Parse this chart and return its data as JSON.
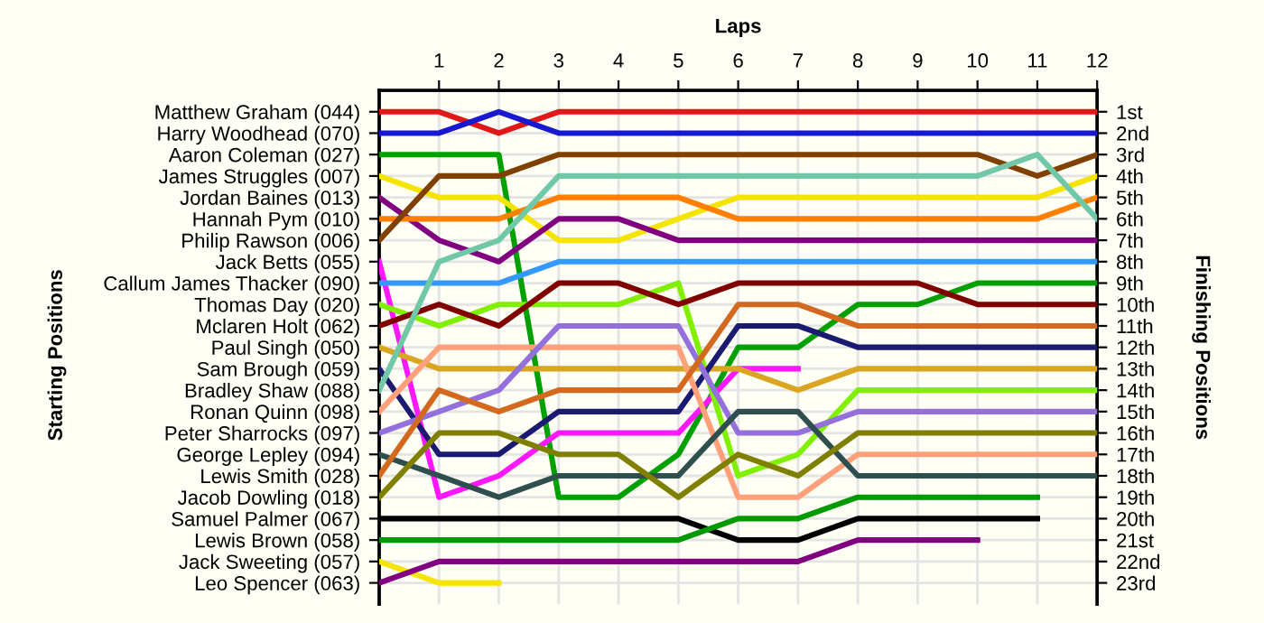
{
  "chart_data": {
    "type": "line",
    "xlabel": "Laps",
    "annotations": [
      "Starting Positions"
    ],
    "y2label": "Finishing Positions",
    "x": [
      0,
      1,
      2,
      3,
      4,
      5,
      6,
      7,
      8,
      9,
      10,
      11,
      12
    ],
    "xlim": [
      0,
      12
    ],
    "xticks": [
      1,
      2,
      3,
      4,
      5,
      6,
      7,
      8,
      9,
      10,
      11,
      12
    ],
    "y_categories": [
      "Matthew Graham (044)",
      "Harry Woodhead (070)",
      "Aaron Coleman (027)",
      "James Struggles (007)",
      "Jordan Baines (013)",
      "Hannah Pym (010)",
      "Philip Rawson (006)",
      "Jack Betts (055)",
      "Callum James Thacker (090)",
      "Thomas Day (020)",
      "Mclaren Holt (062)",
      "Paul Singh (050)",
      "Sam Brough (059)",
      "Bradley Shaw (088)",
      "Ronan Quinn (098)",
      "Peter Sharrocks (097)",
      "George Lepley (094)",
      "Lewis Smith (028)",
      "Jacob Dowling (018)",
      "Samuel Palmer (067)",
      "Lewis Brown (058)",
      "Jack Sweeting (057)",
      "Leo Spencer (063)"
    ],
    "y2lim": [
      24,
      0
    ],
    "y2ticks": [
      {
        "value": 1,
        "label": "1st"
      },
      {
        "value": 2,
        "label": "2nd"
      },
      {
        "value": 3,
        "label": "3rd"
      },
      {
        "value": 4,
        "label": "4th"
      },
      {
        "value": 5,
        "label": "5th"
      },
      {
        "value": 6,
        "label": "6th"
      },
      {
        "value": 7,
        "label": "7th"
      },
      {
        "value": 8,
        "label": "8th"
      },
      {
        "value": 9,
        "label": "9th"
      },
      {
        "value": 10,
        "label": "10th"
      },
      {
        "value": 11,
        "label": "11th"
      },
      {
        "value": 12,
        "label": "12th"
      },
      {
        "value": 13,
        "label": "13th"
      },
      {
        "value": 14,
        "label": "14th"
      },
      {
        "value": 15,
        "label": "15th"
      },
      {
        "value": 16,
        "label": "16th"
      },
      {
        "value": 17,
        "label": "17th"
      },
      {
        "value": 18,
        "label": "18th"
      },
      {
        "value": 19,
        "label": "19th"
      },
      {
        "value": 20,
        "label": "20th"
      },
      {
        "value": 21,
        "label": "21st"
      },
      {
        "value": 22,
        "label": "22nd"
      },
      {
        "value": 23,
        "label": "23rd"
      }
    ],
    "grid": true,
    "marker": "none",
    "line_style": "solid",
    "series": [
      {
        "axis": "y2",
        "color": "#e01818",
        "values": [
          1,
          1,
          2,
          1,
          1,
          1,
          1,
          1,
          1,
          1,
          1,
          1,
          1
        ]
      },
      {
        "axis": "y2",
        "color": "#1818d0",
        "values": [
          2,
          2,
          1,
          2,
          2,
          2,
          2,
          2,
          2,
          2,
          2,
          2,
          2
        ]
      },
      {
        "axis": "y2",
        "color": "#00a000",
        "values": [
          3,
          3,
          3,
          19,
          19,
          17,
          12,
          12,
          10,
          10,
          9,
          9,
          9
        ]
      },
      {
        "axis": "y2",
        "color": "#f5e400",
        "values": [
          4,
          5,
          5,
          7,
          7,
          6,
          5,
          5,
          5,
          5,
          5,
          5,
          4
        ]
      },
      {
        "axis": "y2",
        "color": "#800080",
        "values": [
          5,
          7,
          8,
          6,
          6,
          7,
          7,
          7,
          7,
          7,
          7,
          7,
          7
        ]
      },
      {
        "axis": "y2",
        "color": "#ff8000",
        "values": [
          6,
          6,
          6,
          5,
          5,
          5,
          6,
          6,
          6,
          6,
          6,
          6,
          5
        ]
      },
      {
        "axis": "y2",
        "color": "#804000",
        "values": [
          7,
          4,
          4,
          3,
          3,
          3,
          3,
          3,
          3,
          3,
          3,
          4,
          3
        ]
      },
      {
        "axis": "y2",
        "color": "#ff18ff",
        "values": [
          8,
          19,
          18,
          16,
          16,
          16,
          13,
          13,
          null,
          null,
          null,
          null,
          null
        ]
      },
      {
        "axis": "y2",
        "color": "#3399ff",
        "values": [
          9,
          9,
          9,
          8,
          8,
          8,
          8,
          8,
          8,
          8,
          8,
          8,
          8
        ]
      },
      {
        "axis": "y2",
        "color": "#80f000",
        "values": [
          10,
          11,
          10,
          10,
          10,
          9,
          18,
          17,
          14,
          14,
          14,
          14,
          14
        ]
      },
      {
        "axis": "y2",
        "color": "#800000",
        "values": [
          11,
          10,
          11,
          9,
          9,
          10,
          9,
          9,
          9,
          9,
          10,
          10,
          10
        ]
      },
      {
        "axis": "y2",
        "color": "#daa520",
        "values": [
          12,
          13,
          13,
          13,
          13,
          13,
          13,
          14,
          13,
          13,
          13,
          13,
          13
        ]
      },
      {
        "axis": "y2",
        "color": "#1a1a70",
        "values": [
          13,
          17,
          17,
          15,
          15,
          15,
          11,
          11,
          12,
          12,
          12,
          12,
          12
        ]
      },
      {
        "axis": "y2",
        "color": "#70c8a8",
        "values": [
          14,
          8,
          7,
          4,
          4,
          4,
          4,
          4,
          4,
          4,
          4,
          3,
          6
        ]
      },
      {
        "axis": "y2",
        "color": "#ffa07a",
        "values": [
          15,
          12,
          12,
          12,
          12,
          12,
          19,
          19,
          17,
          17,
          17,
          17,
          17
        ]
      },
      {
        "axis": "y2",
        "color": "#9370db",
        "values": [
          16,
          15,
          14,
          11,
          11,
          11,
          16,
          16,
          15,
          15,
          15,
          15,
          15
        ]
      },
      {
        "axis": "y2",
        "color": "#2f4f4f",
        "values": [
          17,
          18,
          19,
          18,
          18,
          18,
          15,
          15,
          18,
          18,
          18,
          18,
          18
        ]
      },
      {
        "axis": "y2",
        "color": "#d2691e",
        "values": [
          18,
          14,
          15,
          14,
          14,
          14,
          10,
          10,
          11,
          11,
          11,
          11,
          11
        ]
      },
      {
        "axis": "y2",
        "color": "#808000",
        "values": [
          19,
          16,
          16,
          17,
          17,
          19,
          17,
          18,
          16,
          16,
          16,
          16,
          16
        ]
      },
      {
        "axis": "y2",
        "color": "#000000",
        "values": [
          20,
          20,
          20,
          20,
          20,
          20,
          21,
          21,
          20,
          20,
          20,
          20,
          null
        ]
      },
      {
        "axis": "y2",
        "color": "#009a00",
        "values": [
          21,
          21,
          21,
          21,
          21,
          21,
          20,
          20,
          19,
          19,
          19,
          19,
          null
        ]
      },
      {
        "axis": "y2",
        "color": "#f5e400",
        "values": [
          22,
          23,
          23,
          null,
          null,
          null,
          null,
          null,
          null,
          null,
          null,
          null,
          null
        ]
      },
      {
        "axis": "y2",
        "color": "#800080",
        "values": [
          23,
          22,
          22,
          22,
          22,
          22,
          22,
          22,
          21,
          21,
          21,
          null,
          null
        ]
      }
    ]
  }
}
